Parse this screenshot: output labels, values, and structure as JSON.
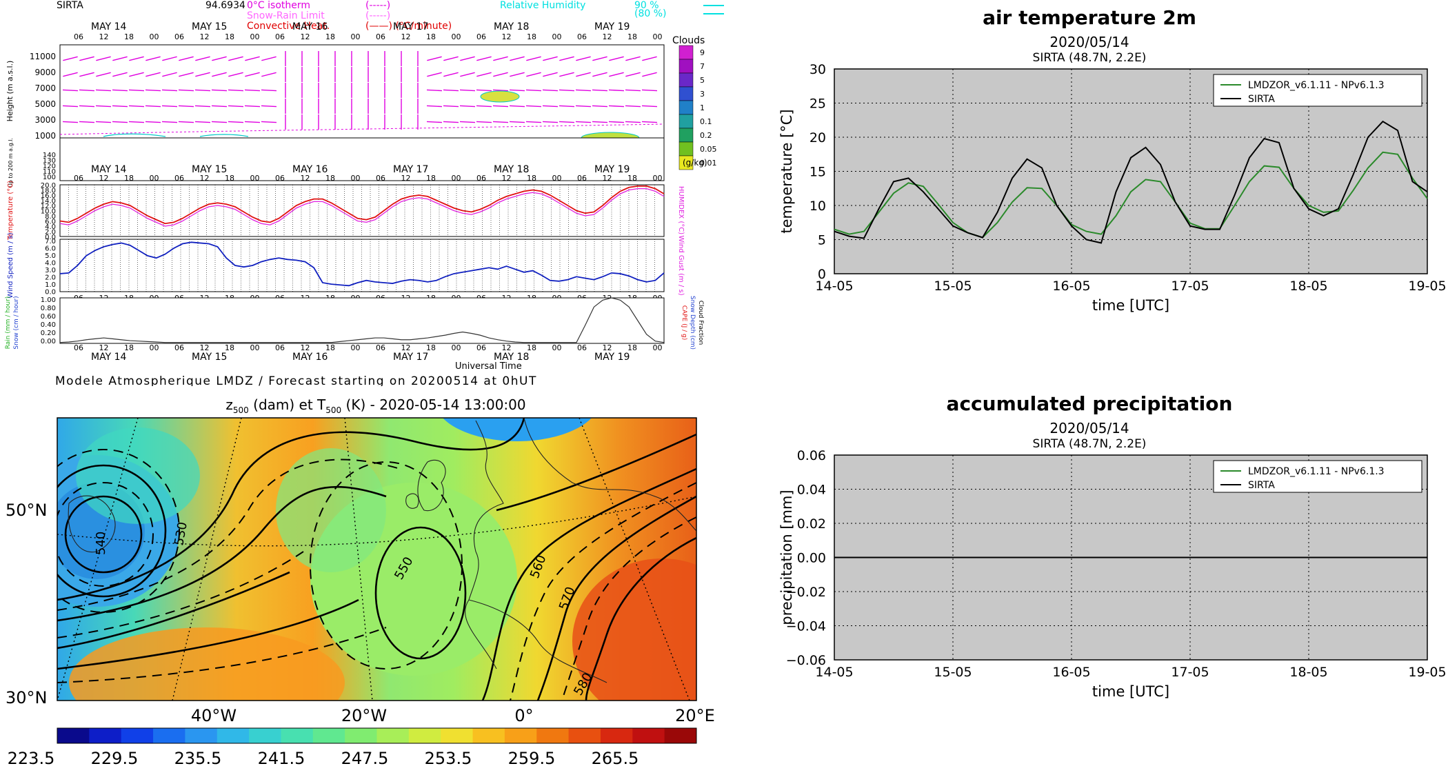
{
  "meteogram": {
    "station": "SIRTA",
    "station_value": "94.6934",
    "legend_left": [
      {
        "label": "0°C isotherm",
        "style": "(-----)",
        "color": "#e000e0"
      },
      {
        "label": "Snow-Rain Limit",
        "style": "(-----)",
        "color": "#ff66ff"
      },
      {
        "label": "Convective Heat.",
        "style": "(——) (°C/minute)",
        "color": "#e00000"
      }
    ],
    "legend_right": [
      {
        "label": "Relative Humidity",
        "value": "90 %",
        "color": "#00e0e0"
      },
      {
        "label": "",
        "value": "(80 %)",
        "color": "#00e0e0"
      }
    ],
    "days": [
      "MAY 14",
      "MAY 15",
      "MAY 16",
      "MAY 17",
      "MAY 18",
      "MAY 19"
    ],
    "hours": [
      "06",
      "12",
      "18",
      "00"
    ],
    "height_ticks": [
      "11000",
      "9000",
      "7000",
      "5000",
      "3000",
      "1000"
    ],
    "low_ticks": [
      "140",
      "130",
      "120",
      "110",
      "100"
    ],
    "clouds_title": "Clouds",
    "clouds_levels": [
      "9",
      "7",
      "5",
      "3",
      "1",
      "0.1",
      "0.2",
      "0.05",
      "0.01"
    ],
    "clouds_unit": "(g/kg)",
    "panel_labels": {
      "height": "Height (m a.s.l.)",
      "low": "Up to 200 m a.g.l.",
      "temperature": "Temperature (°C)",
      "humidex": "HUMIDEX (°C)",
      "wind": "Wind Speed (m / s)",
      "gust": "Wind Gust (m / s)",
      "rain": "Rain (mm / hour)",
      "snow": "Snow (cm / hour)",
      "cape": "CAPE (J / g)",
      "snowdepth": "Snow Depth (cm)",
      "cloudfrac": "Cloud Fraction"
    },
    "temp_ticks": [
      "20.0",
      "18.0",
      "16.0",
      "14.0",
      "12.0",
      "10.0",
      "8.0",
      "6.0",
      "4.0",
      "2.0",
      "0.0"
    ],
    "wind_ticks": [
      "7.0",
      "6.0",
      "5.0",
      "4.0",
      "3.0",
      "2.0",
      "1.0",
      "0.0"
    ],
    "rain_ticks": [
      "1.00",
      "0.80",
      "0.60",
      "0.40",
      "0.20",
      "0.00"
    ],
    "xlabel": "Universal Time",
    "footer": "Modele Atmospherique LMDZ / Forecast starting on 20200514 at 0hUT",
    "temperature": [
      6,
      5.5,
      7,
      9,
      11,
      12.5,
      13.5,
      13,
      12,
      10,
      8,
      6.5,
      5,
      5.5,
      7,
      9,
      11,
      12.5,
      13,
      12.5,
      11.5,
      9.5,
      7.5,
      6,
      5.5,
      7,
      9.5,
      12,
      13.5,
      14.5,
      14.5,
      13,
      11,
      9,
      7,
      6.5,
      7.5,
      10,
      12.5,
      14.5,
      15.5,
      16,
      15.5,
      14,
      12.5,
      11,
      10,
      9.5,
      10.5,
      12,
      14,
      15.5,
      16.5,
      17.5,
      18,
      17.5,
      16,
      14,
      12,
      10,
      9,
      9.5,
      12,
      15,
      17.5,
      19,
      19.5,
      19.5,
      18.5,
      16.5
    ],
    "humidex": [
      5,
      4.5,
      6,
      8,
      10,
      11.5,
      12.5,
      12,
      11,
      9,
      7,
      5.5,
      4,
      4.5,
      6,
      8,
      10,
      11.5,
      12,
      11.5,
      10.5,
      8.5,
      6.5,
      5,
      4.5,
      6,
      8.5,
      11,
      12.5,
      13.5,
      13.5,
      12,
      10,
      8,
      6,
      5.5,
      6.5,
      9,
      11.5,
      13.5,
      14.5,
      15,
      14.5,
      13,
      11.5,
      10,
      9,
      8.5,
      9.5,
      11,
      13,
      14.5,
      15.5,
      16.5,
      17,
      16.5,
      15,
      13,
      11,
      9,
      8,
      8.5,
      11,
      14,
      16.5,
      18,
      18.5,
      18.5,
      17.5,
      15.5
    ],
    "wind": [
      2.4,
      2.5,
      3.5,
      4.8,
      5.5,
      6,
      6.3,
      6.5,
      6.2,
      5.5,
      4.8,
      4.5,
      5,
      5.8,
      6.4,
      6.6,
      6.5,
      6.4,
      6,
      4.5,
      3.5,
      3.3,
      3.5,
      4,
      4.3,
      4.5,
      4.3,
      4.2,
      4,
      3.2,
      1.2,
      1,
      0.9,
      0.8,
      1.2,
      1.5,
      1.3,
      1.2,
      1.1,
      1.4,
      1.6,
      1.5,
      1.3,
      1.5,
      2,
      2.4,
      2.6,
      2.8,
      3,
      3.2,
      3,
      3.4,
      3,
      2.6,
      2.8,
      2.2,
      1.5,
      1.4,
      1.6,
      2,
      1.8,
      1.6,
      2,
      2.5,
      2.4,
      2.1,
      1.6,
      1.3,
      1.5,
      2.5
    ],
    "rain": [
      0.02,
      0.03,
      0.05,
      0.08,
      0.1,
      0.12,
      0.1,
      0.08,
      0.06,
      0.05,
      0.04,
      0.03,
      0.02,
      0.02,
      0.02,
      0.02,
      0.02,
      0.02,
      0.02,
      0.02,
      0.02,
      0.02,
      0.02,
      0.02,
      0.02,
      0.02,
      0.02,
      0.02,
      0.02,
      0.02,
      0.02,
      0.02,
      0.04,
      0.06,
      0.08,
      0.1,
      0.12,
      0.12,
      0.1,
      0.08,
      0.08,
      0.1,
      0.12,
      0.15,
      0.18,
      0.22,
      0.25,
      0.22,
      0.18,
      0.12,
      0.08,
      0.05,
      0.03,
      0.02,
      0.02,
      0.02,
      0.02,
      0.02,
      0.02,
      0.02,
      0.4,
      0.8,
      0.95,
      1.0,
      0.95,
      0.8,
      0.5,
      0.2,
      0.05,
      0.02
    ]
  },
  "map": {
    "title": "z500 (dam) et T500 (K) - 2020-05-14 13:00:00",
    "title_z": "z",
    "title_z_sub": "500",
    "title_mid": " (dam) et T",
    "title_t_sub": "500",
    "title_end": " (K) - 2020-05-14 13:00:00",
    "lat_labels": [
      "50°N",
      "30°N"
    ],
    "lon_labels": [
      "40°W",
      "20°W",
      "0°",
      "20°E"
    ],
    "contour_labels": [
      "530",
      "550",
      "560",
      "570",
      "580",
      "540"
    ],
    "colorbar_ticks": [
      "223.5",
      "229.5",
      "235.5",
      "241.5",
      "247.5",
      "253.5",
      "259.5",
      "265.5"
    ],
    "colorbar_colors": [
      "#0a0a8c",
      "#0d1ec8",
      "#1040e8",
      "#1a6ef0",
      "#2a96f0",
      "#30b8e8",
      "#38d0d0",
      "#48e0b0",
      "#60e890",
      "#80ec70",
      "#a8ee58",
      "#d0ec40",
      "#f0e030",
      "#f8c020",
      "#f8a018",
      "#f07810",
      "#e85010",
      "#d82810",
      "#c01010",
      "#9a0808"
    ]
  },
  "chart_data": [
    {
      "type": "line",
      "title": "air temperature 2m",
      "subtitle": "2020/05/14",
      "subtitle2": "SIRTA (48.7N, 2.2E)",
      "xlabel": "time [UTC]",
      "ylabel": "temperature [°C]",
      "x_ticks": [
        "14-05",
        "15-05",
        "16-05",
        "17-05",
        "18-05",
        "19-05"
      ],
      "y_ticks": [
        "0",
        "5",
        "10",
        "15",
        "20",
        "25",
        "30"
      ],
      "xlim": [
        0,
        5
      ],
      "ylim": [
        0,
        30
      ],
      "grid": true,
      "legend_position": "top-right",
      "series": [
        {
          "name": "LMDZOR_v6.1.11 - NPv6.1.3",
          "color": "#2a8a2a",
          "x": [
            0,
            0.125,
            0.25,
            0.375,
            0.5,
            0.625,
            0.75,
            0.875,
            1,
            1.125,
            1.25,
            1.375,
            1.5,
            1.625,
            1.75,
            1.875,
            2,
            2.125,
            2.25,
            2.375,
            2.5,
            2.625,
            2.75,
            2.875,
            3,
            3.125,
            3.25,
            3.375,
            3.5,
            3.625,
            3.75,
            3.875,
            4,
            4.125,
            4.25,
            4.375,
            4.5,
            4.625,
            4.75,
            4.875,
            5
          ],
          "y": [
            6.5,
            5.8,
            6.2,
            9,
            11.8,
            13.3,
            12.8,
            10.2,
            7.5,
            6,
            5.3,
            7.5,
            10.5,
            12.6,
            12.5,
            10,
            7.2,
            6.2,
            5.8,
            8.5,
            12,
            13.8,
            13.5,
            10.5,
            7.4,
            6.6,
            6.6,
            10,
            13.5,
            15.8,
            15.6,
            12.5,
            10,
            9,
            9.2,
            12.2,
            15.5,
            17.8,
            17.5,
            14,
            11
          ]
        },
        {
          "name": "SIRTA",
          "color": "#000000",
          "x": [
            0,
            0.125,
            0.25,
            0.375,
            0.5,
            0.625,
            0.75,
            0.875,
            1,
            1.125,
            1.25,
            1.375,
            1.5,
            1.625,
            1.75,
            1.875,
            2,
            2.125,
            2.25,
            2.375,
            2.5,
            2.625,
            2.75,
            2.875,
            3,
            3.125,
            3.25,
            3.375,
            3.5,
            3.625,
            3.75,
            3.875,
            4,
            4.125,
            4.25,
            4.375,
            4.5,
            4.625,
            4.75,
            4.875,
            5
          ],
          "y": [
            6.2,
            5.5,
            5.2,
            9.5,
            13.5,
            14,
            12,
            9.5,
            7,
            6,
            5.3,
            9,
            14,
            16.8,
            15.5,
            10,
            7,
            5,
            4.5,
            12,
            17,
            18.5,
            16,
            10.5,
            7,
            6.5,
            6.5,
            11.5,
            17,
            19.8,
            19.2,
            12.5,
            9.5,
            8.5,
            9.5,
            14.5,
            20,
            22.3,
            21,
            13.5,
            12
          ]
        }
      ]
    },
    {
      "type": "line",
      "title": "accumulated precipitation",
      "subtitle": "2020/05/14",
      "subtitle2": "SIRTA (48.7N, 2.2E)",
      "xlabel": "time [UTC]",
      "ylabel": "precipitation [mm]",
      "x_ticks": [
        "14-05",
        "15-05",
        "16-05",
        "17-05",
        "18-05",
        "19-05"
      ],
      "y_ticks": [
        "−0.06",
        "−0.04",
        "−0.02",
        "0.00",
        "0.02",
        "0.04",
        "0.06"
      ],
      "xlim": [
        0,
        5
      ],
      "ylim": [
        -0.06,
        0.06
      ],
      "grid": true,
      "legend_position": "top-right",
      "series": [
        {
          "name": "LMDZOR_v6.1.11 - NPv6.1.3",
          "color": "#2a8a2a",
          "x": [
            0,
            5
          ],
          "y": [
            0,
            0
          ]
        },
        {
          "name": "SIRTA",
          "color": "#000000",
          "x": [
            0,
            5
          ],
          "y": [
            0,
            0
          ]
        }
      ]
    }
  ]
}
